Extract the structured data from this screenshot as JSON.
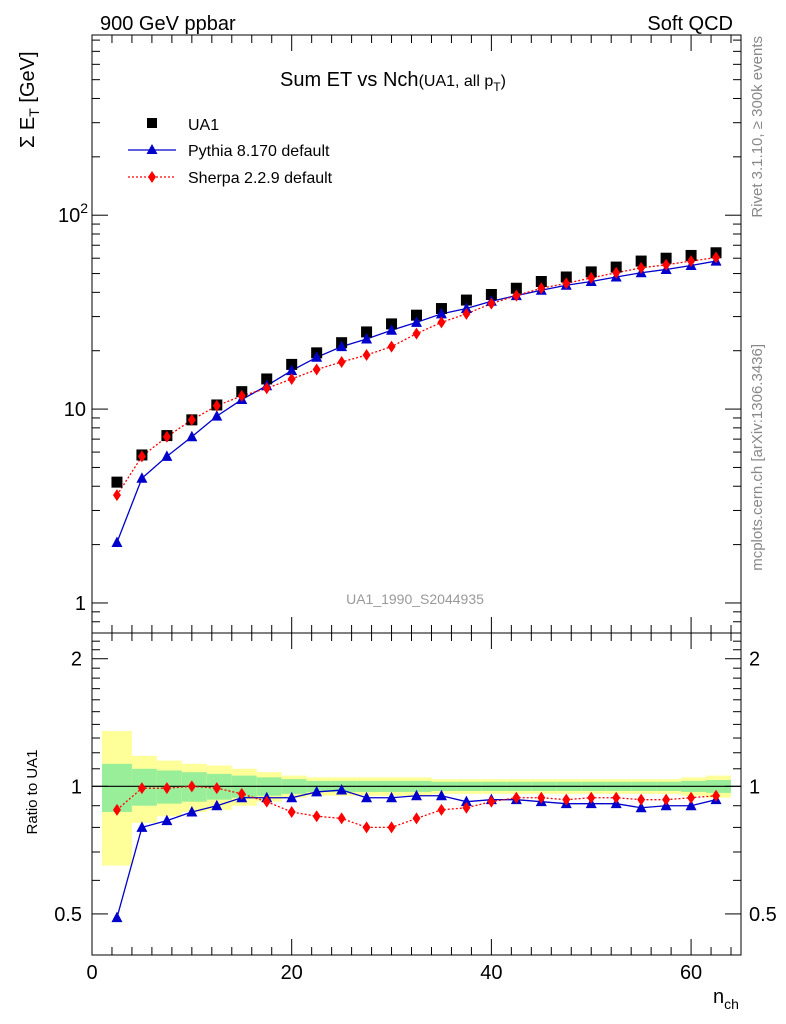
{
  "header": {
    "left": "900 GeV ppbar",
    "right": "Soft QCD"
  },
  "side_labels": {
    "top": "Rivet 3.1.10, ≥ 300k events",
    "bottom": "mcplots.cern.ch [arXiv:1306.3436]"
  },
  "chart_data": [
    {
      "type": "scatter",
      "panel": "main",
      "title": "Sum ET vs Nch",
      "title_suffix": "(UA1, all p",
      "title_suffix_sub": "T",
      "title_suffix_end": ")",
      "ylabel": "Σ E",
      "ylabel_sub": "T",
      "ylabel_unit": " [GeV]",
      "yscale": "log",
      "ylim": [
        0.7,
        850
      ],
      "xlim": [
        0,
        65
      ],
      "yticks": [
        {
          "v": 1,
          "label": "1"
        },
        {
          "v": 10,
          "label": "10"
        },
        {
          "v": 100,
          "label": "10",
          "sup": "2"
        }
      ],
      "watermark": "UA1_1990_S2044935",
      "legend": [
        {
          "key": "ua1",
          "label": "UA1"
        },
        {
          "key": "pythia",
          "label": "Pythia 8.170 default"
        },
        {
          "key": "sherpa",
          "label": "Sherpa 2.2.9 default"
        }
      ],
      "x": [
        2.5,
        5,
        7.5,
        10,
        12.5,
        15,
        17.5,
        20,
        22.5,
        25,
        27.5,
        30,
        32.5,
        35,
        37.5,
        40,
        42.5,
        45,
        47.5,
        50,
        52.5,
        55,
        57.5,
        60,
        62.5
      ],
      "series": [
        {
          "name": "UA1",
          "key": "ua1",
          "color": "#000000",
          "values": [
            4.2,
            5.8,
            7.3,
            8.8,
            10.5,
            12.3,
            14.3,
            17,
            19.5,
            22,
            25,
            27.5,
            30.5,
            33,
            36.5,
            39,
            42,
            45.5,
            48,
            51,
            54,
            58,
            60,
            62,
            64
          ]
        },
        {
          "name": "Pythia 8.170 default",
          "key": "pythia",
          "color": "#0000cc",
          "values": [
            2.05,
            4.4,
            5.7,
            7.2,
            9.2,
            11.2,
            13.2,
            15.8,
            18.5,
            21,
            23,
            25.5,
            28,
            31,
            33,
            36,
            38.5,
            41,
            43.5,
            45.5,
            48,
            50.5,
            52.5,
            55,
            58
          ]
        },
        {
          "name": "Sherpa 2.2.9 default",
          "key": "sherpa",
          "color": "#ff0000",
          "values": [
            3.6,
            5.7,
            7.2,
            8.8,
            10.4,
            11.7,
            12.8,
            14.3,
            16,
            17.5,
            19,
            21,
            24.5,
            28,
            31,
            35,
            38.5,
            42,
            44.5,
            47.5,
            50.5,
            53.5,
            55.5,
            58,
            60.5
          ]
        }
      ]
    },
    {
      "type": "line",
      "panel": "ratio",
      "ylabel": "Ratio to UA1",
      "xlabel": "n",
      "xlabel_sub": "ch",
      "xlim": [
        0,
        65
      ],
      "ylim": [
        0.4,
        2.3
      ],
      "yscale": "log",
      "yticks": [
        {
          "v": 0.5,
          "label": "0.5"
        },
        {
          "v": 1,
          "label": "1"
        },
        {
          "v": 2,
          "label": "2"
        }
      ],
      "xticks": [
        {
          "v": 0,
          "label": "0"
        },
        {
          "v": 20,
          "label": "20"
        },
        {
          "v": 40,
          "label": "40"
        },
        {
          "v": 60,
          "label": "60"
        }
      ],
      "x": [
        2.5,
        5,
        7.5,
        10,
        12.5,
        15,
        17.5,
        20,
        22.5,
        25,
        27.5,
        30,
        32.5,
        35,
        37.5,
        40,
        42.5,
        45,
        47.5,
        50,
        52.5,
        55,
        57.5,
        60,
        62.5
      ],
      "bin_edges": [
        1,
        4,
        6.5,
        9,
        11.5,
        14,
        16.5,
        19,
        21.5,
        24,
        26.5,
        29,
        31.5,
        34,
        36.5,
        39,
        41.5,
        44,
        46.5,
        49,
        51.5,
        54,
        56.5,
        59,
        61.5,
        64
      ],
      "band_yellow": [
        0.35,
        0.18,
        0.15,
        0.13,
        0.12,
        0.1,
        0.08,
        0.06,
        0.05,
        0.05,
        0.05,
        0.05,
        0.05,
        0.04,
        0.04,
        0.04,
        0.04,
        0.04,
        0.04,
        0.04,
        0.04,
        0.04,
        0.04,
        0.05,
        0.06
      ],
      "band_green": [
        0.13,
        0.1,
        0.09,
        0.08,
        0.07,
        0.06,
        0.05,
        0.04,
        0.03,
        0.03,
        0.03,
        0.03,
        0.03,
        0.025,
        0.025,
        0.025,
        0.025,
        0.025,
        0.025,
        0.025,
        0.025,
        0.025,
        0.025,
        0.03,
        0.035
      ],
      "series": [
        {
          "name": "Pythia 8.170 default",
          "key": "pythia",
          "color": "#0000cc",
          "values": [
            0.49,
            0.8,
            0.83,
            0.87,
            0.9,
            0.94,
            0.94,
            0.94,
            0.97,
            0.98,
            0.94,
            0.94,
            0.95,
            0.95,
            0.92,
            0.93,
            0.93,
            0.92,
            0.91,
            0.91,
            0.91,
            0.89,
            0.9,
            0.9,
            0.93
          ]
        },
        {
          "name": "Sherpa 2.2.9 default",
          "key": "sherpa",
          "color": "#ff0000",
          "values": [
            0.88,
            0.99,
            0.99,
            1.0,
            0.99,
            0.96,
            0.92,
            0.87,
            0.85,
            0.84,
            0.8,
            0.8,
            0.84,
            0.88,
            0.89,
            0.92,
            0.94,
            0.94,
            0.93,
            0.94,
            0.94,
            0.93,
            0.93,
            0.94,
            0.95
          ]
        }
      ]
    }
  ]
}
